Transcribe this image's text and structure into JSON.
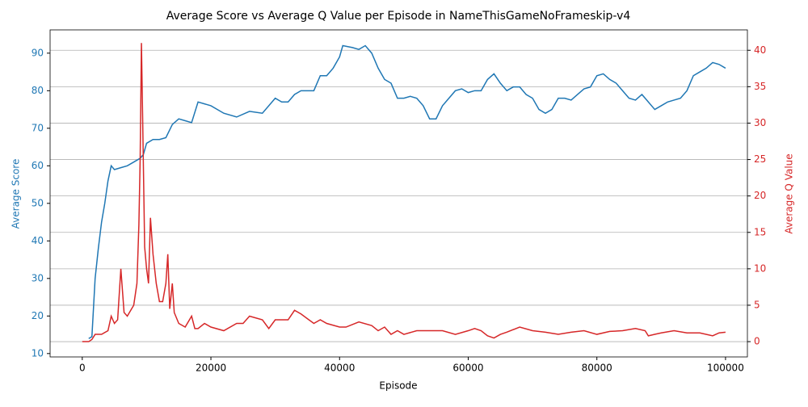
{
  "chart_data": {
    "type": "line",
    "title": "Average Score vs Average Q Value per Episode in NameThisGameNoFrameskip-v4",
    "xlabel": "Episode",
    "ylabel": "Average Score",
    "y2label": "Average Q Value",
    "ylabel_color": "#1f77b4",
    "y2label_color": "#d62728",
    "xlim": [
      -5000,
      103400
    ],
    "xticks": [
      0,
      20000,
      40000,
      60000,
      80000,
      100000
    ],
    "ylim": [
      9.1,
      96.2
    ],
    "yticks": [
      10,
      20,
      30,
      40,
      50,
      60,
      70,
      80,
      90
    ],
    "y2lim": [
      -2.1,
      42.8
    ],
    "y2ticks": [
      0,
      5,
      10,
      15,
      20,
      25,
      30,
      35,
      40
    ],
    "grid": "y2",
    "series": [
      {
        "color": "#1f77b4",
        "axis": "y",
        "x": [
          1000,
          1500,
          2000,
          2500,
          3000,
          3500,
          4000,
          4500,
          5000,
          6000,
          7000,
          8000,
          9000,
          9500,
          10000,
          11000,
          12000,
          13000,
          14000,
          15000,
          16000,
          17000,
          18000,
          20000,
          22000,
          24000,
          26000,
          28000,
          30000,
          31000,
          32000,
          33000,
          34000,
          36000,
          37000,
          38000,
          39000,
          40000,
          40500,
          42000,
          43000,
          44000,
          45000,
          46000,
          47000,
          48000,
          49000,
          50000,
          51000,
          52000,
          53000,
          54000,
          55000,
          56000,
          57000,
          58000,
          59000,
          60000,
          61000,
          62000,
          63000,
          64000,
          65000,
          66000,
          67000,
          68000,
          69000,
          70000,
          71000,
          72000,
          73000,
          74000,
          75000,
          76000,
          77000,
          78000,
          79000,
          80000,
          81000,
          82000,
          83000,
          84000,
          85000,
          86000,
          87000,
          88000,
          89000,
          90000,
          91000,
          92000,
          93000,
          94000,
          95000,
          96000,
          97000,
          98000,
          99000,
          100000
        ],
        "values": [
          14,
          14.5,
          30,
          38,
          45,
          50,
          56,
          60,
          59,
          59.5,
          60,
          61,
          62,
          63,
          66,
          67,
          67,
          67.5,
          71,
          72.5,
          72,
          71.5,
          77,
          76,
          74,
          73,
          74.5,
          74,
          78,
          77,
          77,
          79,
          80,
          80,
          84,
          84,
          86,
          89,
          92,
          91.5,
          91,
          92,
          90,
          86,
          83,
          82,
          78,
          78,
          78.5,
          78,
          76,
          72.5,
          72.5,
          76,
          78,
          80,
          80.5,
          79.5,
          80,
          80,
          83,
          84.5,
          82,
          80,
          81,
          81,
          79,
          78,
          75,
          74,
          75,
          78,
          78,
          77.5,
          79,
          80.5,
          81,
          84,
          84.5,
          83,
          82,
          80,
          78,
          77.5,
          79,
          77,
          75,
          76,
          77,
          77.5,
          78,
          80,
          84,
          85,
          86,
          87.5,
          87,
          86
        ]
      },
      {
        "color": "#d62728",
        "axis": "y2",
        "x": [
          0,
          1000,
          1500,
          2000,
          3000,
          4000,
          4500,
          5000,
          5500,
          6000,
          6500,
          7000,
          8000,
          8500,
          8800,
          9000,
          9200,
          9400,
          9700,
          10000,
          10300,
          10600,
          11000,
          11500,
          12000,
          12500,
          13000,
          13300,
          13600,
          14000,
          14300,
          15000,
          16000,
          17000,
          17500,
          18000,
          19000,
          20000,
          22000,
          24000,
          25000,
          26000,
          28000,
          29000,
          30000,
          32000,
          33000,
          34000,
          36000,
          37000,
          38000,
          40000,
          41000,
          43000,
          45000,
          46000,
          47000,
          48000,
          49000,
          50000,
          52000,
          54000,
          56000,
          58000,
          60000,
          61000,
          62000,
          63000,
          64000,
          65000,
          66000,
          68000,
          70000,
          72000,
          74000,
          76000,
          78000,
          80000,
          82000,
          84000,
          86000,
          87500,
          88000,
          89000,
          90000,
          92000,
          94000,
          96000,
          98000,
          99000,
          100000
        ],
        "values": [
          0,
          0,
          0.3,
          1,
          1,
          1.5,
          3.5,
          2.5,
          3,
          10,
          4,
          3.5,
          5,
          8,
          16,
          25,
          41,
          30,
          13,
          10,
          8,
          17,
          12,
          8,
          5.5,
          5.5,
          8,
          12,
          4.5,
          8,
          4,
          2.5,
          2,
          3.5,
          1.8,
          1.8,
          2.5,
          2,
          1.5,
          2.5,
          2.5,
          3.5,
          3,
          1.8,
          3,
          3,
          4.3,
          3.8,
          2.5,
          3,
          2.5,
          2,
          2,
          2.7,
          2.2,
          1.5,
          2,
          1,
          1.5,
          1,
          1.5,
          1.5,
          1.5,
          1,
          1.5,
          1.8,
          1.5,
          0.8,
          0.5,
          1,
          1.3,
          2,
          1.5,
          1.3,
          1,
          1.3,
          1.5,
          1,
          1.4,
          1.5,
          1.8,
          1.5,
          0.8,
          1,
          1.2,
          1.5,
          1.2,
          1.2,
          0.8,
          1.2,
          1.3
        ]
      }
    ]
  }
}
